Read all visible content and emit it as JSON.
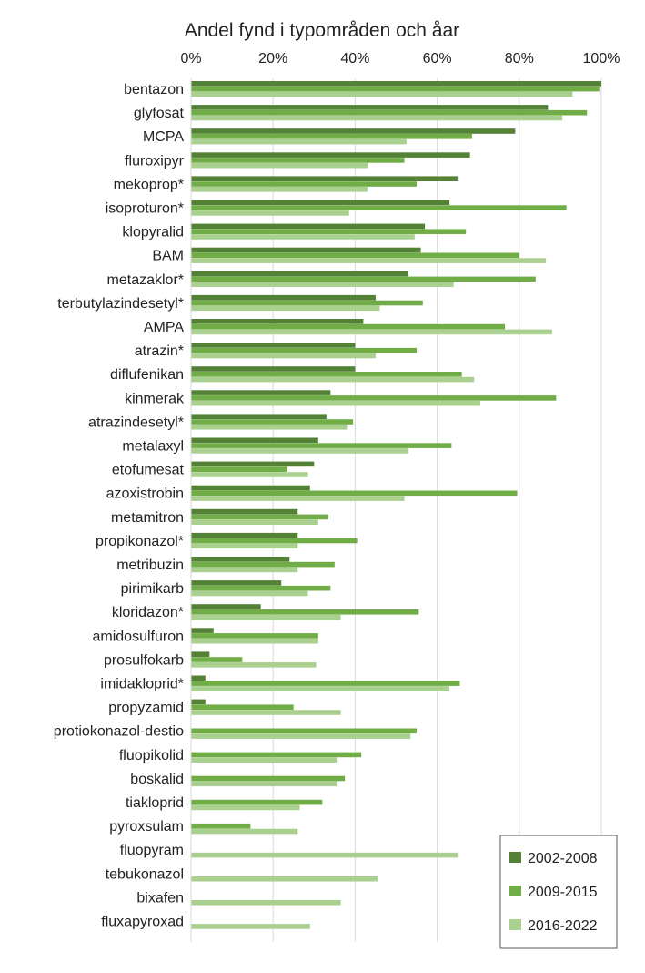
{
  "chart_data": {
    "type": "bar",
    "orientation": "horizontal",
    "title": "Andel fynd i typområden och åar",
    "xlim": [
      0,
      100
    ],
    "x_ticks": [
      "0%",
      "20%",
      "40%",
      "60%",
      "80%",
      "100%"
    ],
    "x_tick_values": [
      0,
      20,
      40,
      60,
      80,
      100
    ],
    "x_axis_position": "top",
    "grid": true,
    "legend_position": "bottom-right",
    "categories": [
      "bentazon",
      "glyfosat",
      "MCPA",
      "fluroxipyr",
      "mekoprop*",
      "isoproturon*",
      "klopyralid",
      "BAM",
      "metazaklor*",
      "terbutylazindesetyl*",
      "AMPA",
      "atrazin*",
      "diflufenikan",
      "kinmerak",
      "atrazindesetyl*",
      "metalaxyl",
      "etofumesat",
      "azoxistrobin",
      "metamitron",
      "propikonazol*",
      "metribuzin",
      "pirimikarb",
      "kloridazon*",
      "amidosulfuron",
      "prosulfokarb",
      "imidakloprid*",
      "propyzamid",
      "protiokonazol-destio",
      "fluopikolid",
      "boskalid",
      "tiakloprid",
      "pyroxsulam",
      "fluopyram",
      "tebukonazol",
      "bixafen",
      "fluxapyroxad"
    ],
    "series": [
      {
        "name": "2002-2008",
        "color": "#538135",
        "values": [
          100,
          87,
          79,
          68,
          65,
          63,
          57,
          56,
          53,
          45,
          42,
          40,
          40,
          34,
          33,
          31,
          30,
          29,
          26,
          26,
          24,
          22,
          17,
          5.5,
          4.5,
          3.5,
          3.5,
          null,
          null,
          null,
          null,
          null,
          null,
          null,
          null,
          null
        ]
      },
      {
        "name": "2009-2015",
        "color": "#70AD47",
        "values": [
          99.5,
          96.5,
          68.5,
          52,
          55,
          91.5,
          67,
          80,
          84,
          56.5,
          76.5,
          55,
          66,
          89,
          39.5,
          63.5,
          23.5,
          79.5,
          33.5,
          40.5,
          35,
          34,
          55.5,
          31,
          12.5,
          65.5,
          25,
          55,
          41.5,
          37.5,
          32,
          14.5,
          null,
          null,
          null,
          null
        ]
      },
      {
        "name": "2016-2022",
        "color": "#A9D08E",
        "values": [
          93,
          90.5,
          52.5,
          43,
          43,
          38.5,
          54.5,
          86.5,
          64,
          46,
          88,
          45,
          69,
          70.5,
          38,
          53,
          28.5,
          52,
          31,
          26,
          26,
          28.5,
          36.5,
          31,
          30.5,
          63,
          36.5,
          53.5,
          35.5,
          35.5,
          26.5,
          26,
          65,
          45.5,
          36.5,
          29
        ]
      }
    ]
  }
}
